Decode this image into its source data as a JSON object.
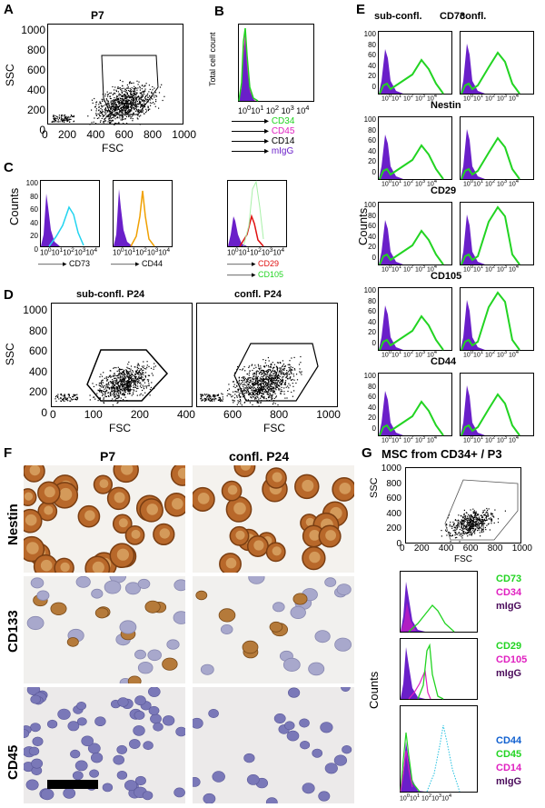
{
  "panels": {
    "A": {
      "label": "A",
      "title": "P7",
      "ylabel": "SSC",
      "xlabel": "FSC",
      "yticks": [
        "1000",
        "800",
        "600",
        "400",
        "200",
        "0"
      ],
      "xticks": [
        "0",
        "200",
        "400",
        "600",
        "800",
        "1000"
      ]
    },
    "B": {
      "label": "B",
      "ylabel": "Total cell count",
      "legend": [
        "CD34",
        "CD45",
        "CD14",
        "mIgG"
      ]
    },
    "C": {
      "label": "C",
      "ylabel": "Counts",
      "markers": [
        "CD73",
        "CD44"
      ],
      "legend3": [
        "CD29",
        "CD105"
      ]
    },
    "D": {
      "label": "D",
      "title_left": "sub-confl. P24",
      "title_right": "confl. P24",
      "ylabel": "SSC",
      "xlabel": "FSC"
    },
    "E": {
      "label": "E",
      "col1": "sub-confl.",
      "col2": "confl.",
      "ylabel": "Counts",
      "markers": [
        "CD73",
        "Nestin",
        "CD29",
        "CD105",
        "CD44"
      ]
    },
    "F": {
      "label": "F",
      "col1": "P7",
      "col2": "confl. P24",
      "rows": [
        "Nestin",
        "CD133",
        "CD45"
      ]
    },
    "G": {
      "label": "G",
      "title": "MSC from CD34+ / P3",
      "ylabel": "SSC",
      "xlabel": "FSC",
      "hist_ylabel": "Counts",
      "legend1": [
        "CD73",
        "CD34",
        "mIgG"
      ],
      "legend2": [
        "CD29",
        "CD105",
        "mIgG"
      ],
      "legend3": [
        "CD44",
        "CD45",
        "CD14",
        "mIgG"
      ]
    }
  },
  "hist_yticks": [
    "100",
    "80",
    "60",
    "40",
    "20",
    "0"
  ],
  "log_ticks": [
    "10⁰",
    "10¹",
    "10²",
    "10³",
    "10⁴"
  ],
  "colors": {
    "purple": "#6a1fc9",
    "green": "#22d422",
    "magenta": "#e020c0",
    "cyan": "#22d4f0",
    "orange": "#f0a000",
    "red": "#e01010",
    "dark": "#4a0a5a",
    "blue": "#1060d0"
  }
}
